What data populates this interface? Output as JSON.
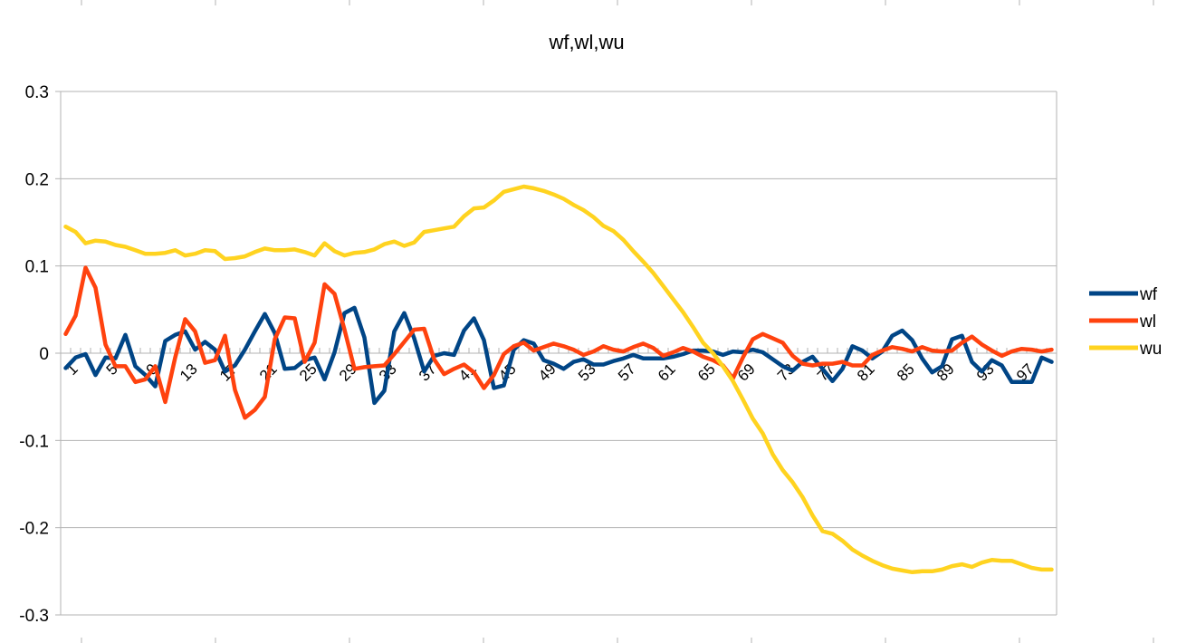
{
  "chart_data": {
    "type": "line",
    "title": "wf,wl,wu",
    "xlabel": "",
    "ylabel": "",
    "ylim": [
      -0.3,
      0.3
    ],
    "ytick_labels": [
      "0.3",
      "0.2",
      "0.1",
      "0",
      "-0.1",
      "-0.2",
      "-0.3"
    ],
    "ytick_values": [
      0.3,
      0.2,
      0.1,
      0,
      -0.1,
      -0.2,
      -0.3
    ],
    "xtick_labels": [
      "1",
      "5",
      "9",
      "13",
      "17",
      "21",
      "25",
      "29",
      "33",
      "37",
      "41",
      "45",
      "49",
      "53",
      "57",
      "61",
      "65",
      "69",
      "73",
      "77",
      "81",
      "85",
      "89",
      "93",
      "97"
    ],
    "x": [
      1,
      2,
      3,
      4,
      5,
      6,
      7,
      8,
      9,
      10,
      11,
      12,
      13,
      14,
      15,
      16,
      17,
      18,
      19,
      20,
      21,
      22,
      23,
      24,
      25,
      26,
      27,
      28,
      29,
      30,
      31,
      32,
      33,
      34,
      35,
      36,
      37,
      38,
      39,
      40,
      41,
      42,
      43,
      44,
      45,
      46,
      47,
      48,
      49,
      50,
      51,
      52,
      53,
      54,
      55,
      56,
      57,
      58,
      59,
      60,
      61,
      62,
      63,
      64,
      65,
      66,
      67,
      68,
      69,
      70,
      71,
      72,
      73,
      74,
      75,
      76,
      77,
      78,
      79,
      80,
      81,
      82,
      83,
      84,
      85,
      86,
      87,
      88,
      89,
      90,
      91,
      92,
      93,
      94,
      95,
      96,
      97,
      98,
      99,
      100
    ],
    "grid": true,
    "legend": "right",
    "series": [
      {
        "name": "wf",
        "color": "#004586",
        "values": [
          -0.017,
          -0.005,
          -0.001,
          -0.025,
          -0.005,
          -0.006,
          0.021,
          -0.015,
          -0.025,
          -0.038,
          0.014,
          0.021,
          0.025,
          0.004,
          0.013,
          0.004,
          -0.021,
          -0.014,
          0.004,
          0.025,
          0.045,
          0.023,
          -0.018,
          -0.017,
          -0.008,
          -0.005,
          -0.03,
          0.001,
          0.046,
          0.052,
          0.018,
          -0.057,
          -0.043,
          0.025,
          0.046,
          0.017,
          -0.021,
          -0.003,
          0.0,
          -0.002,
          0.026,
          0.04,
          0.015,
          -0.04,
          -0.037,
          0.004,
          0.015,
          0.011,
          -0.008,
          -0.012,
          -0.018,
          -0.01,
          -0.007,
          -0.013,
          -0.013,
          -0.009,
          -0.006,
          -0.002,
          -0.006,
          -0.006,
          -0.006,
          -0.004,
          -0.001,
          0.003,
          0.003,
          0.002,
          -0.002,
          0.002,
          0.001,
          0.004,
          0.001,
          -0.007,
          -0.015,
          -0.02,
          -0.01,
          -0.004,
          -0.018,
          -0.032,
          -0.018,
          0.008,
          0.003,
          -0.006,
          0.002,
          0.02,
          0.026,
          0.015,
          -0.006,
          -0.022,
          -0.015,
          0.016,
          0.02,
          -0.01,
          -0.021,
          -0.008,
          -0.014,
          -0.033,
          -0.033,
          -0.033,
          -0.005,
          -0.01
        ]
      },
      {
        "name": "wl",
        "color": "#ff420e",
        "values": [
          0.022,
          0.043,
          0.098,
          0.075,
          0.01,
          -0.015,
          -0.015,
          -0.033,
          -0.03,
          -0.015,
          -0.056,
          -0.005,
          0.039,
          0.025,
          -0.011,
          -0.008,
          0.02,
          -0.042,
          -0.074,
          -0.065,
          -0.05,
          0.016,
          0.041,
          0.04,
          -0.01,
          0.012,
          0.079,
          0.068,
          0.027,
          -0.018,
          -0.016,
          -0.015,
          -0.014,
          -0.001,
          0.013,
          0.027,
          0.028,
          -0.007,
          -0.024,
          -0.018,
          -0.013,
          -0.022,
          -0.04,
          -0.025,
          -0.001,
          0.008,
          0.012,
          0.003,
          0.007,
          0.011,
          0.008,
          0.004,
          -0.002,
          0.002,
          0.008,
          0.004,
          0.002,
          0.007,
          0.011,
          0.006,
          -0.003,
          0.001,
          0.006,
          0.002,
          -0.004,
          -0.008,
          -0.014,
          -0.029,
          -0.005,
          0.016,
          0.022,
          0.017,
          0.012,
          -0.003,
          -0.012,
          -0.014,
          -0.012,
          -0.012,
          -0.01,
          -0.014,
          -0.014,
          -0.002,
          0.003,
          0.007,
          0.005,
          0.002,
          0.007,
          0.003,
          0.002,
          0.003,
          0.012,
          0.019,
          0.01,
          0.003,
          -0.003,
          0.002,
          0.005,
          0.004,
          0.002,
          0.004
        ]
      },
      {
        "name": "wu",
        "color": "#ffd320",
        "values": [
          0.145,
          0.139,
          0.126,
          0.129,
          0.128,
          0.124,
          0.122,
          0.118,
          0.114,
          0.114,
          0.115,
          0.118,
          0.112,
          0.114,
          0.118,
          0.117,
          0.108,
          0.109,
          0.111,
          0.116,
          0.12,
          0.118,
          0.118,
          0.119,
          0.116,
          0.112,
          0.126,
          0.117,
          0.112,
          0.115,
          0.116,
          0.119,
          0.125,
          0.128,
          0.123,
          0.127,
          0.139,
          0.141,
          0.143,
          0.145,
          0.157,
          0.166,
          0.167,
          0.175,
          0.185,
          0.188,
          0.191,
          0.189,
          0.186,
          0.182,
          0.177,
          0.17,
          0.164,
          0.156,
          0.146,
          0.14,
          0.13,
          0.117,
          0.105,
          0.092,
          0.077,
          0.062,
          0.047,
          0.03,
          0.012,
          0.0,
          -0.015,
          -0.032,
          -0.053,
          -0.075,
          -0.092,
          -0.116,
          -0.134,
          -0.148,
          -0.165,
          -0.186,
          -0.204,
          -0.207,
          -0.215,
          -0.225,
          -0.232,
          -0.238,
          -0.243,
          -0.247,
          -0.249,
          -0.251,
          -0.25,
          -0.25,
          -0.248,
          -0.244,
          -0.242,
          -0.245,
          -0.24,
          -0.237,
          -0.238,
          -0.238,
          -0.242,
          -0.246,
          -0.248,
          -0.248
        ]
      }
    ]
  }
}
